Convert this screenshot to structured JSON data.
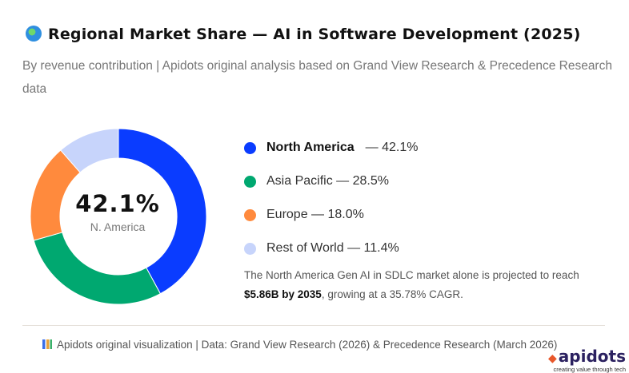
{
  "header": {
    "title": "Regional Market Share — AI in Software Development (2025)",
    "icon": "globe-icon",
    "subtitle": "By revenue contribution | Apidots original analysis based on Grand View Research & Precedence Research data"
  },
  "chart_data": {
    "type": "pie",
    "categories": [
      "North America",
      "Asia Pacific",
      "Europe",
      "Rest of World"
    ],
    "values": [
      42.1,
      28.5,
      18.0,
      11.4
    ],
    "labels": [
      "— 42.1%",
      "— 28.5%",
      "— 18.0%",
      "— 11.4%"
    ],
    "colors": [
      "#0a3cff",
      "#00a870",
      "#ff8a3d",
      "#c7d4fb"
    ],
    "center_value": "42.1%",
    "center_label": "N. America",
    "legend": "right"
  },
  "note": {
    "pre": "The North America Gen AI in SDLC market alone is projected to reach ",
    "bold": "$5.86B by 2035",
    "post": ", growing at a 35.78% CAGR."
  },
  "footer": {
    "text": "Apidots original visualization | Data: Grand View Research (2026) & Precedence Research (March 2026)",
    "icon": "bar-chart-icon"
  },
  "logo": {
    "name": "apidots",
    "tagline": "creating value through tech"
  }
}
